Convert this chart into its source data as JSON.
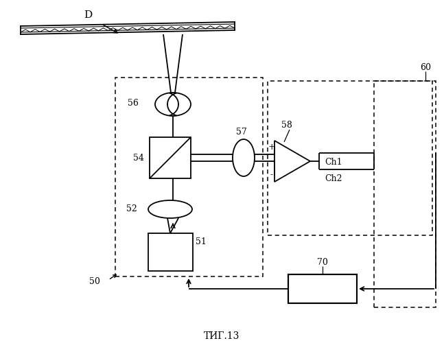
{
  "title": "ΤИГ.13",
  "bg_color": "#ffffff",
  "line_color": "#000000",
  "label_D": "D",
  "label_56": "56",
  "label_54": "54",
  "label_52": "52",
  "label_51": "51",
  "label_50": "50",
  "label_57": "57",
  "label_58": "58",
  "label_60": "60",
  "label_70": "70",
  "label_Ch1": "Ch1",
  "label_Ch2": "Ch2",
  "label_plus": "+",
  "label_minus": "-",
  "figsize": [
    6.47,
    5.0
  ],
  "dpi": 100
}
